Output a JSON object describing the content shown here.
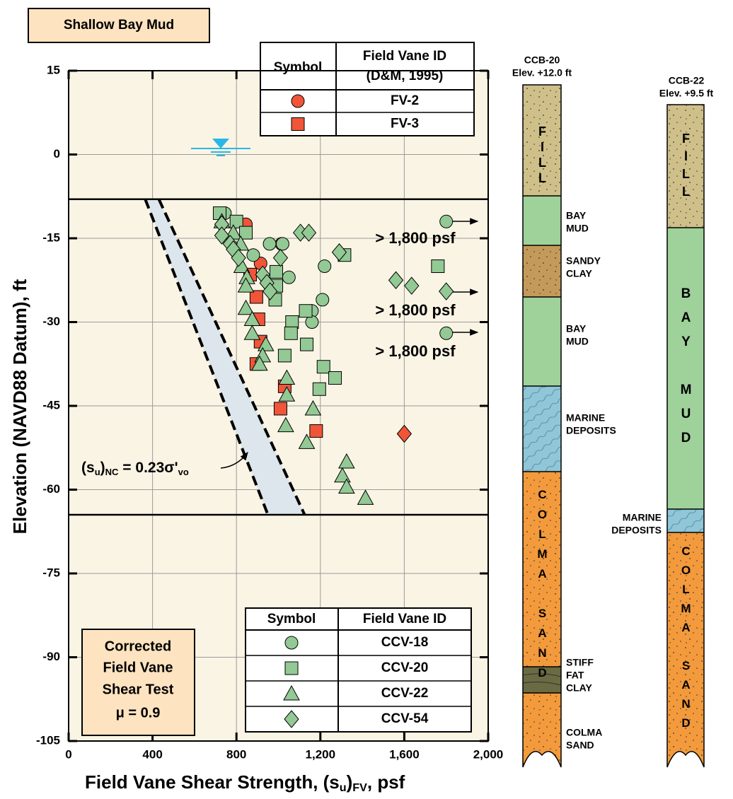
{
  "title": "Shallow Bay Mud",
  "chart_data": {
    "type": "scatter",
    "x_label_parts": [
      "Field Vane Shear Strength, (s",
      "u",
      ")",
      "FV",
      ", psf"
    ],
    "y_label": "Elevation (NAVD88 Datum), ft",
    "xlim": [
      0,
      2000
    ],
    "xticks": [
      0,
      400,
      800,
      {
        "value": 1200,
        "label": "1,200"
      },
      {
        "value": 1600,
        "label": "1,600"
      },
      {
        "value": 2000,
        "label": "2,000"
      }
    ],
    "ylim": [
      -105,
      15
    ],
    "yticks": [
      15,
      0,
      -15,
      -30,
      -45,
      -60,
      -75,
      -90,
      -105
    ],
    "grid": true,
    "boundary_lines": [
      -8,
      -64.5
    ],
    "nc_band": {
      "x_left": [
        365,
        950
      ],
      "x_right": [
        430,
        1125
      ],
      "y": [
        -8,
        -64.5
      ],
      "label_parts": [
        "(s",
        "u",
        ")",
        "NC",
        " = 0.23σ'",
        "vo"
      ]
    },
    "annotations": [
      "> 1,800 psf",
      "> 1,800 psf",
      "> 1,800 psf"
    ],
    "legend_top_header": [
      "Symbol",
      "Field Vane ID",
      "(D&M, 1995)"
    ],
    "legend_bottom_header": [
      "Symbol",
      "Field Vane ID"
    ],
    "series": [
      {
        "name": "FV-2",
        "color": "#f0553a",
        "marker": "circle",
        "legend": "top",
        "x": [
          845,
          1015,
          915
        ],
        "values": [
          -12.5,
          -16,
          -19.5
        ]
      },
      {
        "name": "FV-3",
        "color": "#f0553a",
        "marker": "square",
        "legend": "top",
        "x": [
          865,
          895,
          905,
          915,
          895,
          1030,
          1010,
          1180
        ],
        "values": [
          -21.5,
          -25.5,
          -29.5,
          -33.5,
          -37.5,
          -41.5,
          -45.5,
          -49.5
        ]
      },
      {
        "name": "CCV-18",
        "color": "#93c994",
        "marker": "circle",
        "legend": "bottom",
        "x": [
          745,
          880,
          958,
          1020,
          1050,
          1220,
          1210,
          1160,
          1160,
          1800,
          1800
        ],
        "values": [
          -10.5,
          -18,
          -16,
          -16,
          -22,
          -20,
          -26,
          -28,
          -30,
          -12,
          -32
        ]
      },
      {
        "name": "CCV-20",
        "color": "#93c994",
        "marker": "square",
        "legend": "bottom",
        "x": [
          720,
          800,
          845,
          990,
          990,
          985,
          1065,
          1060,
          1130,
          1135,
          1030,
          1215,
          1195,
          1270,
          1760,
          1315
        ],
        "values": [
          -10.5,
          -12,
          -14,
          -21,
          -23.5,
          -26,
          -30,
          -32,
          -28,
          -34,
          -36,
          -38,
          -42,
          -40,
          -20,
          -18
        ]
      },
      {
        "name": "CCV-22",
        "color": "#93c994",
        "marker": "triangle",
        "legend": "bottom",
        "x": [
          730,
          785,
          820,
          825,
          850,
          845,
          845,
          875,
          875,
          940,
          925,
          910,
          1040,
          1040,
          1035,
          1165,
          1135,
          1325,
          1305,
          1325,
          1415
        ],
        "values": [
          -12,
          -14,
          -16,
          -20,
          -22,
          -23.5,
          -27.5,
          -29.5,
          -32,
          -34,
          -36,
          -37.5,
          -40,
          -43,
          -48.5,
          -45.5,
          -51.5,
          -55,
          -57.5,
          -59.5,
          -61.5
        ]
      },
      {
        "name": "CCV-54",
        "color": "#93c994",
        "marker": "diamond",
        "legend": "bottom",
        "x": [
          730,
          730,
          770,
          785,
          810,
          925,
          945,
          960,
          1010,
          1105,
          1145,
          1290,
          1560,
          1635,
          1800
        ],
        "values": [
          -12.5,
          -14.5,
          -16,
          -17,
          -18.5,
          -21.5,
          -23,
          -24.5,
          -18.5,
          -14,
          -14,
          -17.5,
          -22.5,
          -23.5,
          -24.5
        ]
      },
      {
        "color": "#f0553a",
        "marker": "diamond",
        "x": [
          1600
        ],
        "values": [
          -50
        ]
      }
    ]
  },
  "note_box": [
    "Corrected",
    "Field Vane",
    "Shear Test",
    "μ = 0.9"
  ],
  "boring_logs": [
    {
      "name": "CCB-20",
      "elevation": "Elev. +12.0 ft",
      "vertical_labels": [
        "FILL",
        "COLMA SAND"
      ],
      "layer_labels": [
        [
          "BAY",
          "MUD"
        ],
        [
          "SANDY",
          "CLAY"
        ],
        [
          "BAY",
          "MUD"
        ],
        [
          "MARINE",
          "DEPOSITS"
        ],
        [
          "STIFF",
          "FAT",
          "CLAY"
        ],
        [
          "COLMA",
          "SAND"
        ]
      ]
    },
    {
      "name": "CCB-22",
      "elevation": "Elev. +9.5 ft",
      "vertical_labels": [
        "FILL",
        "BAY MUD",
        "COLMA SAND"
      ],
      "layer_labels": [
        [
          "MARINE",
          "DEPOSITS"
        ]
      ]
    }
  ]
}
